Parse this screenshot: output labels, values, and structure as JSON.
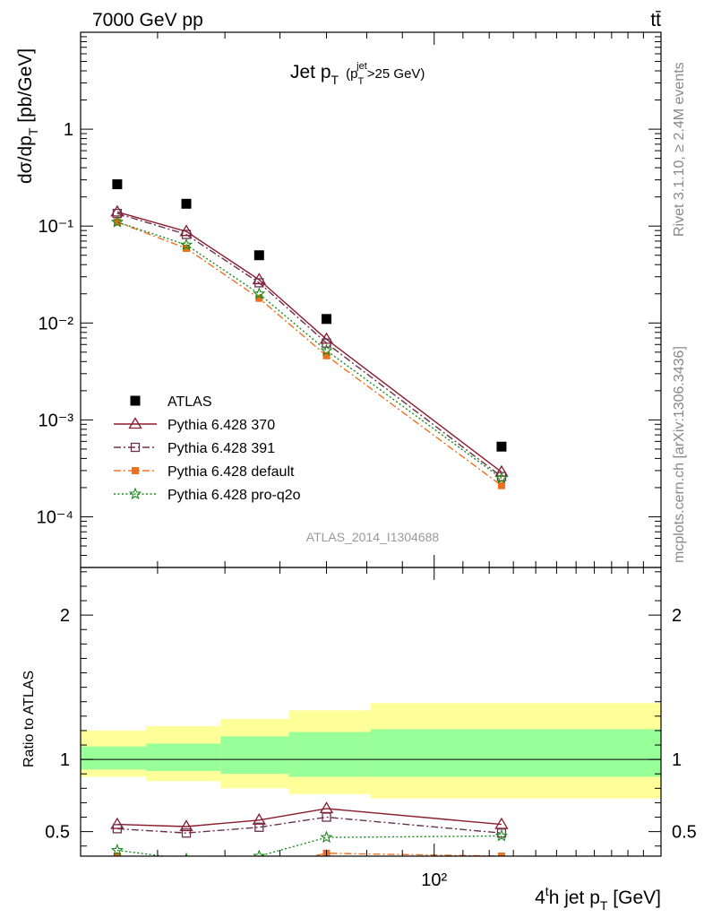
{
  "header": {
    "left": "7000 GeV pp",
    "right": "tt̄"
  },
  "title": {
    "main": "Jet p",
    "main_sub": "T",
    "cond_open": "(p",
    "cond_sub": "T",
    "cond_sup": "jet",
    "cond_rest": ">25 GeV)"
  },
  "ylabel_main": {
    "pre": "dσ/dp",
    "sub": "T",
    "post": " [pb/GeV]"
  },
  "ylabel_ratio": "Ratio to ATLAS",
  "xlabel": {
    "pre": "4",
    "sup": "t",
    "mid": "h jet p",
    "sub": "T",
    "post": " [GeV]"
  },
  "side_right_top": "Rivet 3.1.10, ≥ 2.4M events",
  "side_right_bottom": "mcplots.cern.ch [arXiv:1306.3436]",
  "watermark": "ATLAS_2014_I1304688",
  "chart_data": [
    {
      "type": "scatter",
      "name": "main",
      "xscale": "log",
      "yscale": "log",
      "xlim": [
        31,
        212
      ],
      "ylim": [
        3e-05,
        10
      ],
      "ytick_labels": [
        "10⁻⁴",
        "10⁻³",
        "10⁻²",
        "10⁻¹",
        "1"
      ],
      "x_tick_label": "10²",
      "legend_position": "bottom-left",
      "series": [
        {
          "name": "ATLAS",
          "color": "#000000",
          "marker": "square-filled",
          "x": [
            35,
            44,
            56,
            70,
            125
          ],
          "y": [
            0.27,
            0.17,
            0.05,
            0.011,
            0.00053
          ]
        },
        {
          "name": "Pythia 6.428 370",
          "color": "#8b1a2b",
          "marker": "triangle-open",
          "line": "solid",
          "x": [
            35,
            44,
            56,
            70,
            125
          ],
          "y": [
            0.14,
            0.088,
            0.028,
            0.0068,
            0.00029
          ]
        },
        {
          "name": "Pythia 6.428 391",
          "color": "#6b3050",
          "marker": "square-open",
          "line": "dashdot",
          "x": [
            35,
            44,
            56,
            70,
            125
          ],
          "y": [
            0.135,
            0.082,
            0.026,
            0.0062,
            0.00026
          ]
        },
        {
          "name": "Pythia 6.428 default",
          "color": "#f07020",
          "marker": "square-filled-small",
          "line": "dashdot",
          "x": [
            35,
            44,
            56,
            70,
            125
          ],
          "y": [
            0.11,
            0.059,
            0.018,
            0.0046,
            0.00021
          ]
        },
        {
          "name": "Pythia 6.428 pro-q2o",
          "color": "#1a8a1a",
          "marker": "star-open",
          "line": "dotted",
          "x": [
            35,
            44,
            56,
            70,
            125
          ],
          "y": [
            0.11,
            0.064,
            0.02,
            0.0052,
            0.00025
          ]
        }
      ]
    },
    {
      "type": "line",
      "name": "ratio",
      "xscale": "log",
      "ylim": [
        0.33,
        2.33
      ],
      "ytick_labels": [
        "0.5",
        "1",
        "2"
      ],
      "bins": [
        [
          31,
          38.5
        ],
        [
          38.5,
          49.3
        ],
        [
          49.3,
          61.8
        ],
        [
          61.8,
          81
        ],
        [
          81,
          212
        ]
      ],
      "band_stat": [
        [
          0.93,
          1.09
        ],
        [
          0.92,
          1.11
        ],
        [
          0.9,
          1.16
        ],
        [
          0.88,
          1.19
        ],
        [
          0.88,
          1.21
        ]
      ],
      "band_total": [
        [
          0.88,
          1.2
        ],
        [
          0.85,
          1.23
        ],
        [
          0.8,
          1.28
        ],
        [
          0.76,
          1.34
        ],
        [
          0.73,
          1.39
        ]
      ],
      "series": [
        {
          "name": "Pythia 6.428 370",
          "color": "#8b1a2b",
          "marker": "triangle-open",
          "line": "solid",
          "x": [
            35,
            44,
            56,
            70,
            125
          ],
          "y": [
            0.55,
            0.535,
            0.58,
            0.66,
            0.55
          ]
        },
        {
          "name": "Pythia 6.428 391",
          "color": "#6b3050",
          "marker": "square-open",
          "line": "dashdot",
          "x": [
            35,
            44,
            56,
            70,
            125
          ],
          "y": [
            0.52,
            0.49,
            0.53,
            0.6,
            0.49
          ]
        },
        {
          "name": "Pythia 6.428 default",
          "color": "#f07020",
          "marker": "square-filled-small",
          "line": "dashdot",
          "x": [
            35,
            44,
            56,
            70,
            125
          ],
          "y": [
            0.33,
            0.27,
            0.25,
            0.35,
            0.33
          ]
        },
        {
          "name": "Pythia 6.428 pro-q2o",
          "color": "#1a8a1a",
          "marker": "star-open",
          "line": "dotted",
          "x": [
            35,
            44,
            56,
            70,
            125
          ],
          "y": [
            0.37,
            0.31,
            0.33,
            0.46,
            0.47
          ]
        }
      ]
    }
  ]
}
